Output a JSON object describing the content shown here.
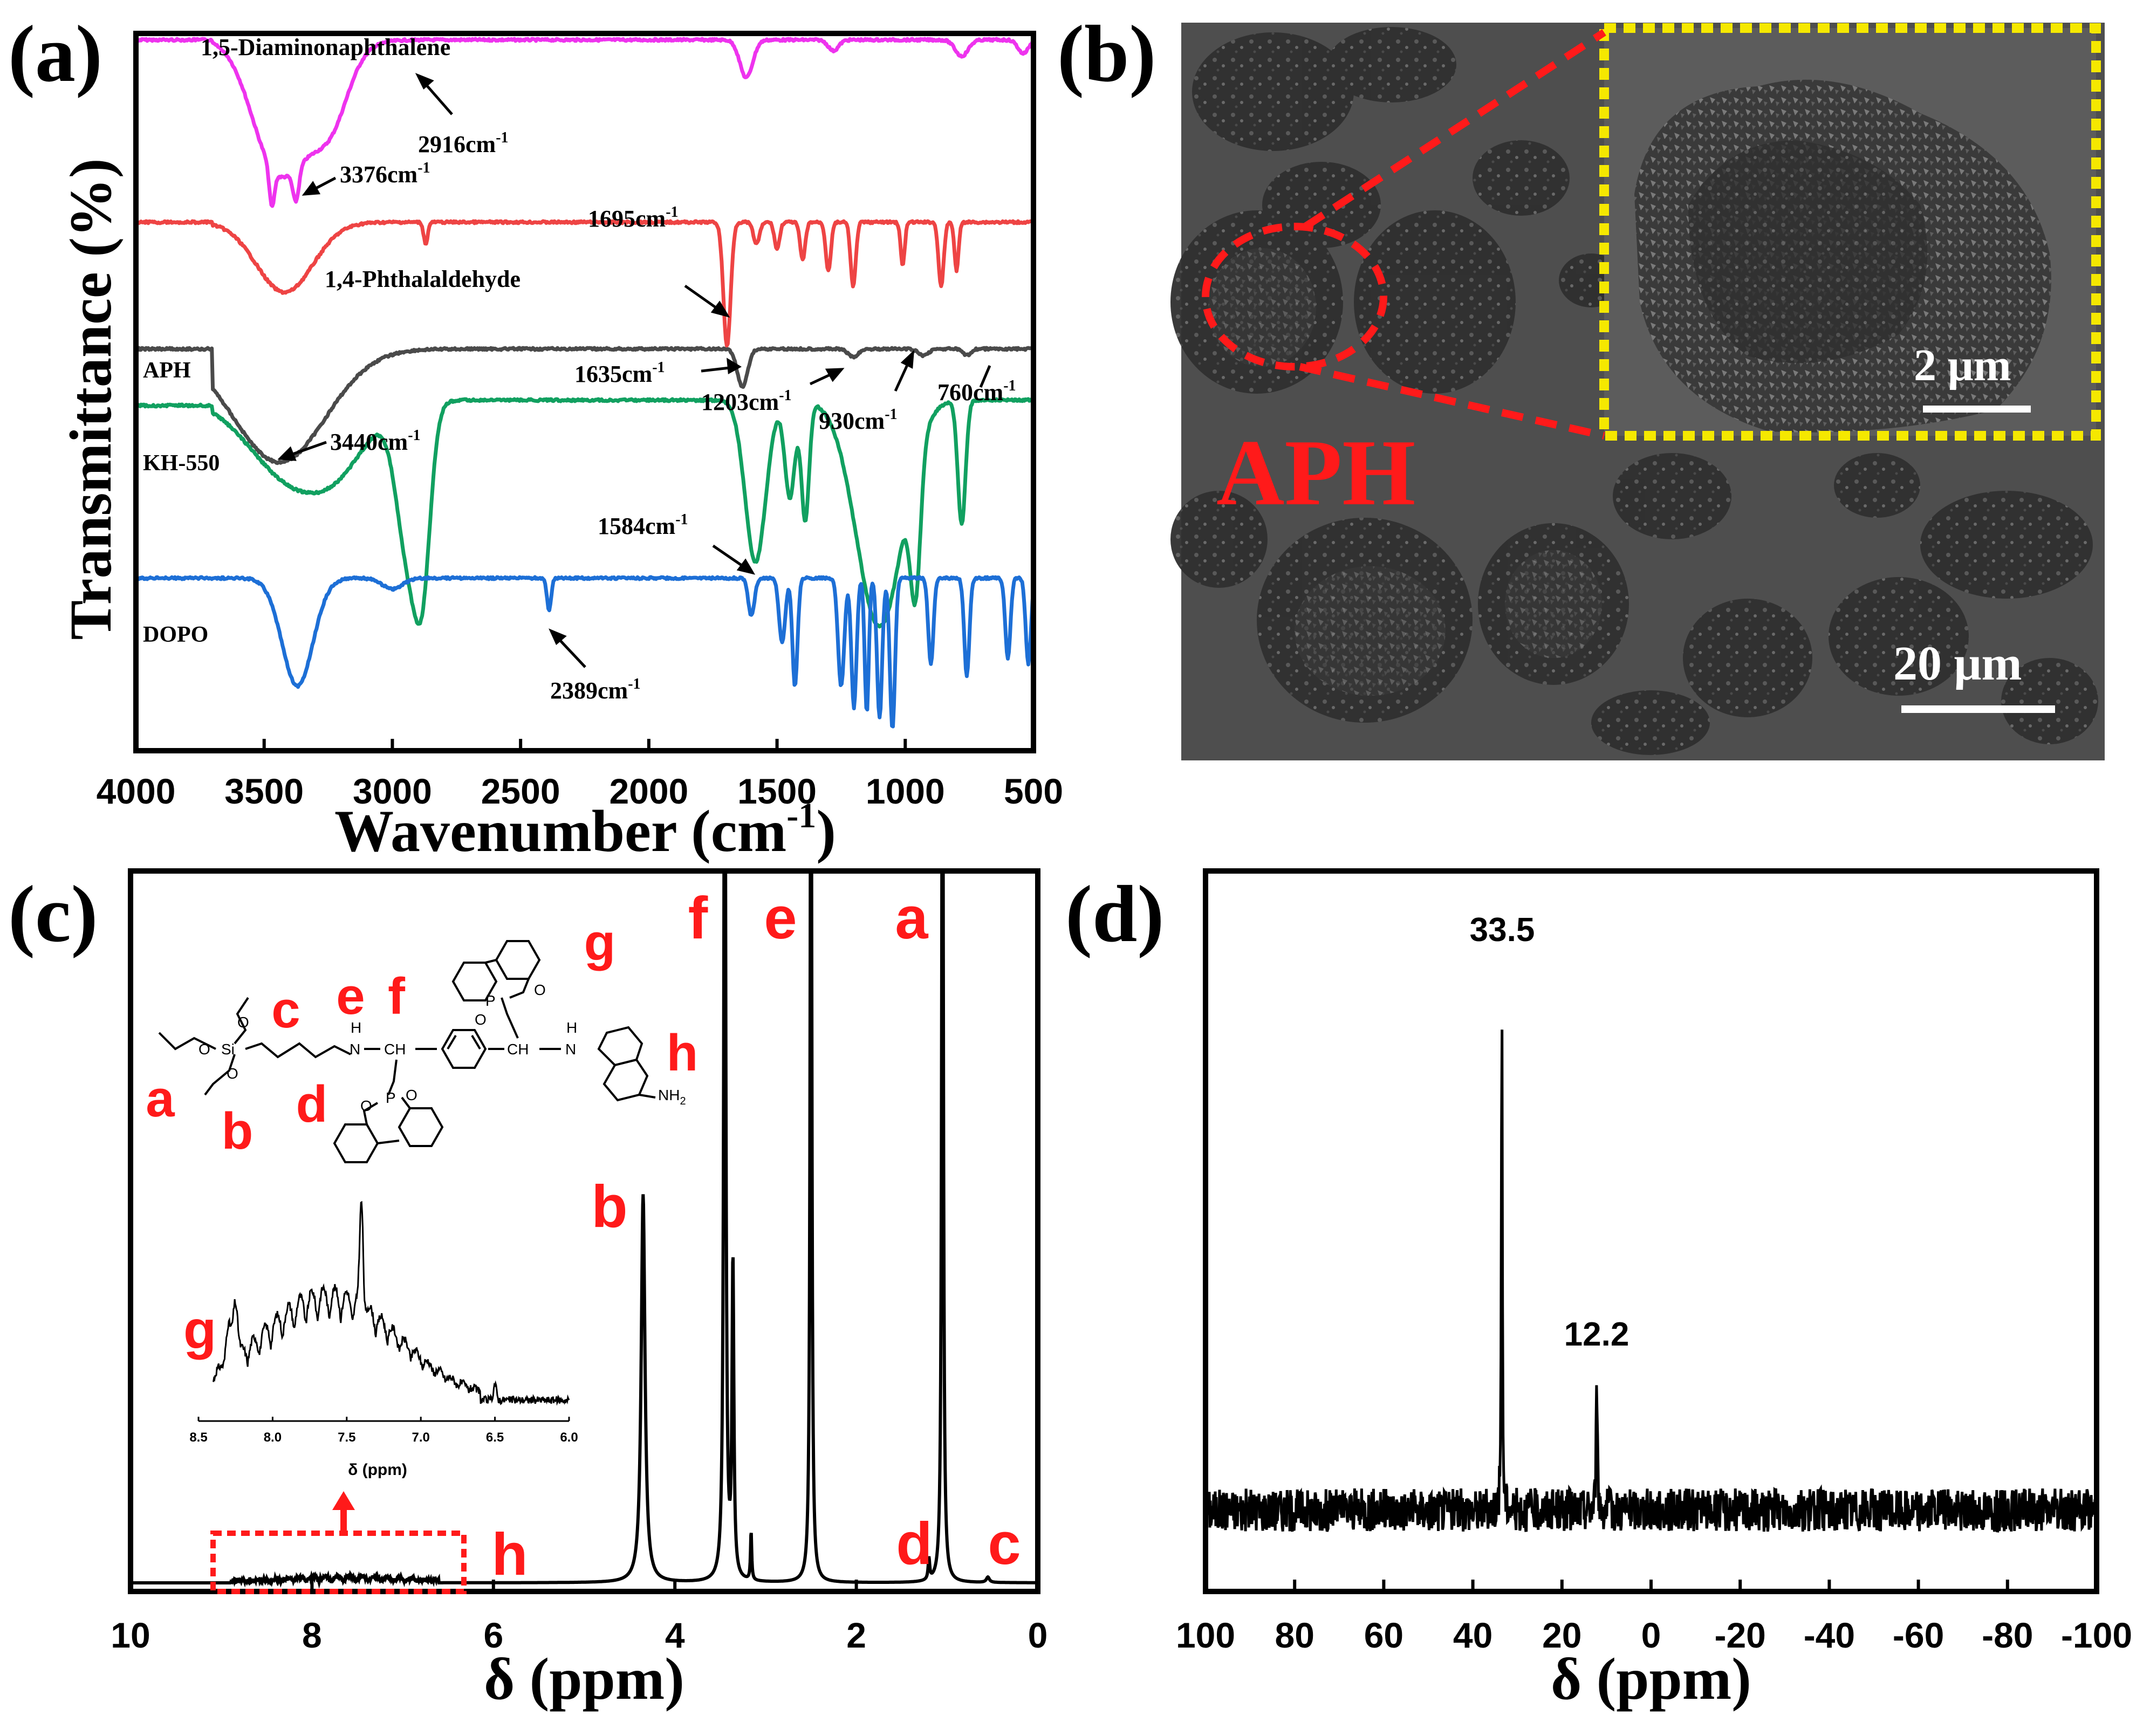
{
  "figure": {
    "panel_labels": [
      "(a)",
      "(b)",
      "(c)",
      "(d)"
    ]
  },
  "chart_data": [
    {
      "panel": "(a)",
      "type": "line",
      "xlabel": "Wavenumber (cm",
      "xlabel_sup": "-1",
      "xlabel_tail": ")",
      "ylabel": "Transmittance (%)",
      "xlim": [
        4000,
        500
      ],
      "xticks": [
        "4000",
        "3500",
        "3000",
        "2500",
        "2000",
        "1500",
        "1000",
        "500"
      ],
      "xtick_values": [
        4000,
        3500,
        3000,
        2500,
        2000,
        1500,
        1000,
        500
      ],
      "series": [
        {
          "name": "1,5-Diaminonaphthalene",
          "color": "#ee33ee"
        },
        {
          "name": "1,4-Phthalaldehyde",
          "color": "#ee4444"
        },
        {
          "name": "APH",
          "color": "#4a4a4a"
        },
        {
          "name": "KH-550",
          "color": "#11a060"
        },
        {
          "name": "DOPO",
          "color": "#1d6fd6"
        }
      ],
      "annotations": [
        {
          "num": "2916",
          "unit": "cm",
          "sup": "-1"
        },
        {
          "num": "3376",
          "unit": "cm",
          "sup": "-1"
        },
        {
          "num": "1695",
          "unit": "cm",
          "sup": "-1"
        },
        {
          "num": "1635",
          "unit": "cm",
          "sup": "-1"
        },
        {
          "num": "1203",
          "unit": "cm",
          "sup": "-1"
        },
        {
          "num": "930",
          "unit": "cm",
          "sup": "-1"
        },
        {
          "num": "760",
          "unit": "cm",
          "sup": "-1"
        },
        {
          "num": "3440",
          "unit": "cm",
          "sup": "-1"
        },
        {
          "num": "1584",
          "unit": "cm",
          "sup": "-1"
        },
        {
          "num": "2389",
          "unit": "cm",
          "sup": "-1"
        }
      ]
    },
    {
      "panel": "(b)",
      "type": "image",
      "label": "APH",
      "scale_main": "20 μm",
      "scale_inset": "2 μm"
    },
    {
      "panel": "(c)",
      "type": "line",
      "xlabel": "δ (ppm)",
      "xlim": [
        10,
        0
      ],
      "xticks": [
        "10",
        "8",
        "6",
        "4",
        "2",
        "0"
      ],
      "xtick_values": [
        10,
        8,
        6,
        4,
        2,
        0
      ],
      "peaks": [
        {
          "label": "f",
          "ppm": 3.45
        },
        {
          "label": "e",
          "ppm": 2.5
        },
        {
          "label": "a",
          "ppm": 1.05
        },
        {
          "label": "b",
          "ppm": 4.35
        },
        {
          "label": "h",
          "ppm": 6.5
        },
        {
          "label": "d",
          "ppm": 1.2
        },
        {
          "label": "c",
          "ppm": 0.55
        }
      ],
      "structure_labels": [
        "c",
        "e",
        "f",
        "g",
        "h",
        "a",
        "b",
        "d"
      ],
      "atoms": [
        "Si",
        "O",
        "O",
        "O",
        "N",
        "H",
        "CH",
        "CH",
        "H",
        "N",
        "P",
        "O",
        "O",
        "P",
        "O",
        "O",
        "NH",
        "2"
      ],
      "inset": {
        "label": "g",
        "xlabel": "δ (ppm)",
        "xlim": [
          8.5,
          6.0
        ],
        "xticks": [
          "8.5",
          "8.0",
          "7.5",
          "7.0",
          "6.5",
          "6.0"
        ],
        "xtick_values": [
          8.5,
          8.0,
          7.5,
          7.0,
          6.5,
          6.0
        ]
      }
    },
    {
      "panel": "(d)",
      "type": "line",
      "xlabel": "δ (ppm)",
      "xlim": [
        100,
        -100
      ],
      "xticks": [
        "100",
        "80",
        "60",
        "40",
        "20",
        "0",
        "-20",
        "-40",
        "-60",
        "-80",
        "-100"
      ],
      "xtick_values": [
        100,
        80,
        60,
        40,
        20,
        0,
        -20,
        -40,
        -60,
        -80,
        -100
      ],
      "peaks": [
        {
          "label": "33.5",
          "ppm": 33.5
        },
        {
          "label": "12.2",
          "ppm": 12.2
        }
      ]
    }
  ]
}
